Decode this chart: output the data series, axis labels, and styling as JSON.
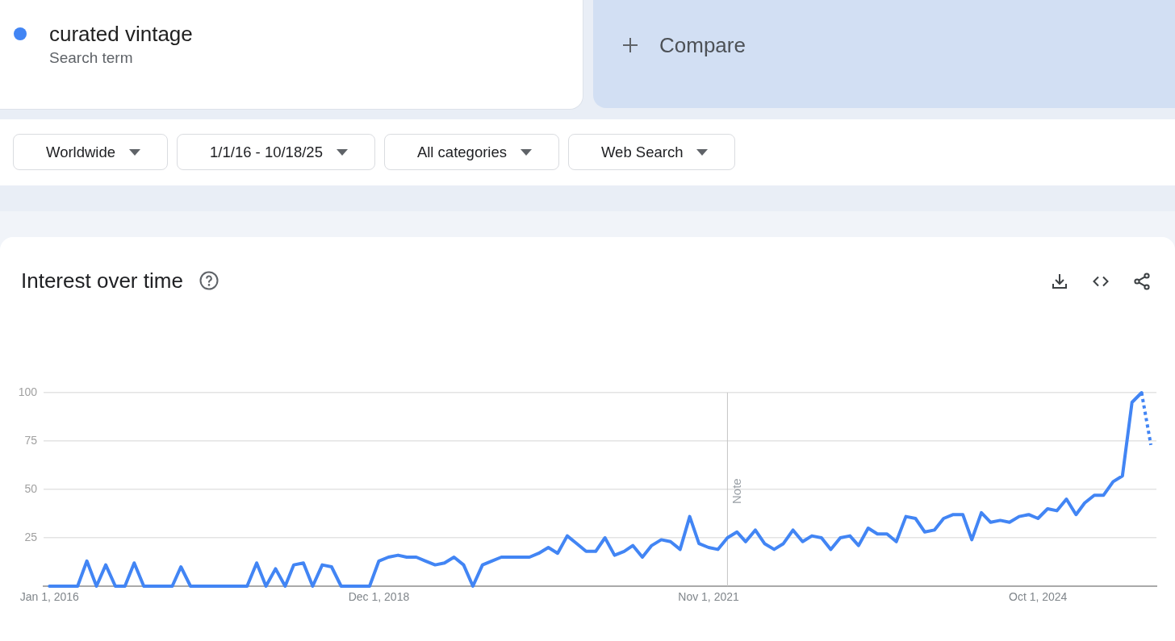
{
  "chart_data": {
    "type": "line",
    "title": "Interest over time",
    "x": [
      "2016-01",
      "2016-02",
      "2016-03",
      "2016-04",
      "2016-05",
      "2016-06",
      "2016-07",
      "2016-08",
      "2016-09",
      "2016-10",
      "2016-11",
      "2016-12",
      "2017-01",
      "2017-02",
      "2017-03",
      "2017-04",
      "2017-05",
      "2017-06",
      "2017-07",
      "2017-08",
      "2017-09",
      "2017-10",
      "2017-11",
      "2017-12",
      "2018-01",
      "2018-02",
      "2018-03",
      "2018-04",
      "2018-05",
      "2018-06",
      "2018-07",
      "2018-08",
      "2018-09",
      "2018-10",
      "2018-11",
      "2018-12",
      "2019-01",
      "2019-02",
      "2019-03",
      "2019-04",
      "2019-05",
      "2019-06",
      "2019-07",
      "2019-08",
      "2019-09",
      "2019-10",
      "2019-11",
      "2019-12",
      "2020-01",
      "2020-02",
      "2020-03",
      "2020-04",
      "2020-05",
      "2020-06",
      "2020-07",
      "2020-08",
      "2020-09",
      "2020-10",
      "2020-11",
      "2020-12",
      "2021-01",
      "2021-02",
      "2021-03",
      "2021-04",
      "2021-05",
      "2021-06",
      "2021-07",
      "2021-08",
      "2021-09",
      "2021-10",
      "2021-11",
      "2021-12",
      "2022-01",
      "2022-02",
      "2022-03",
      "2022-04",
      "2022-05",
      "2022-06",
      "2022-07",
      "2022-08",
      "2022-09",
      "2022-10",
      "2022-11",
      "2022-12",
      "2023-01",
      "2023-02",
      "2023-03",
      "2023-04",
      "2023-05",
      "2023-06",
      "2023-07",
      "2023-08",
      "2023-09",
      "2023-10",
      "2023-11",
      "2023-12",
      "2024-01",
      "2024-02",
      "2024-03",
      "2024-04",
      "2024-05",
      "2024-06",
      "2024-07",
      "2024-08",
      "2024-09",
      "2024-10",
      "2024-11",
      "2024-12",
      "2025-01",
      "2025-02",
      "2025-03",
      "2025-04",
      "2025-05",
      "2025-06",
      "2025-07",
      "2025-08",
      "2025-09"
    ],
    "series": [
      {
        "name": "curated vintage",
        "color": "#4285f4",
        "values": [
          0,
          0,
          0,
          0,
          13,
          0,
          11,
          0,
          0,
          12,
          0,
          0,
          0,
          0,
          10,
          0,
          0,
          0,
          0,
          0,
          0,
          0,
          12,
          0,
          9,
          0,
          11,
          12,
          0,
          11,
          10,
          0,
          0,
          0,
          0,
          13,
          15,
          16,
          15,
          15,
          13,
          11,
          12,
          15,
          11,
          0,
          11,
          13,
          15,
          15,
          15,
          15,
          17,
          20,
          17,
          26,
          22,
          18,
          18,
          25,
          16,
          18,
          21,
          15,
          21,
          24,
          23,
          19,
          36,
          22,
          20,
          19,
          25,
          28,
          23,
          29,
          22,
          19,
          22,
          29,
          23,
          26,
          25,
          19,
          25,
          26,
          21,
          30,
          27,
          27,
          23,
          36,
          35,
          28,
          29,
          35,
          37,
          37,
          24,
          38,
          33,
          34,
          33,
          36,
          37,
          35,
          40,
          39,
          45,
          37,
          43,
          47,
          47,
          54,
          57,
          95,
          100
        ]
      },
      {
        "color": "#4285f4",
        "line_style": "dotted",
        "x": [
          "2025-09",
          "2025-10"
        ],
        "values": [
          100,
          73
        ]
      }
    ],
    "xlim": [
      "2015-12-13",
      "2025-10-19"
    ],
    "xticks": [
      {
        "value": "2016-01-01",
        "label": "Jan 1, 2016"
      },
      {
        "value": "2018-12-01",
        "label": "Dec 1, 2018"
      },
      {
        "value": "2021-11-01",
        "label": "Nov 1, 2021"
      },
      {
        "value": "2024-10-01",
        "label": "Oct 1, 2024"
      }
    ],
    "ylim": [
      0,
      100
    ],
    "yticks": [
      25,
      50,
      75,
      100
    ],
    "grid": "y",
    "legend": "top left",
    "ref_lines": [
      {
        "axis": "x",
        "value": "2022-01-01",
        "label": "Note",
        "color": "#c4c4c4"
      }
    ],
    "annotations": [
      "Search term",
      "Compare",
      "Worldwide",
      "1/1/16 - 10/18/25",
      "All categories",
      "Web Search"
    ]
  }
}
